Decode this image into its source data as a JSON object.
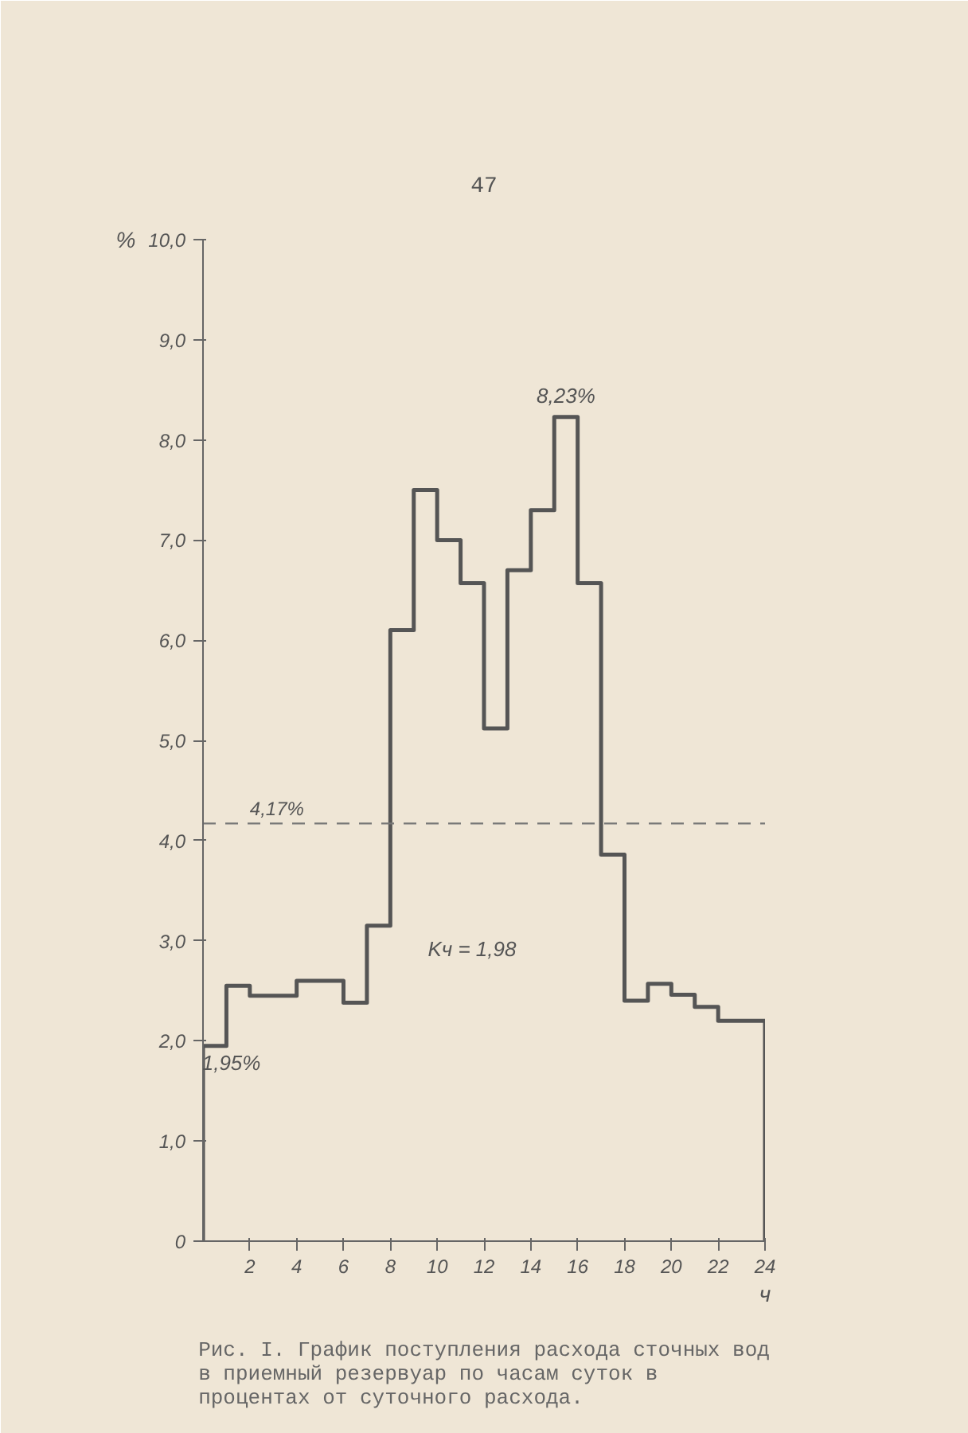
{
  "chart_data": {
    "type": "histogram",
    "title": "Рис. I. График поступления расхода сточных вод в приемный резервуар по часам суток в процентах от суточного расхода.",
    "subtitle": "47",
    "xlabel": "ч",
    "ylabel": "%",
    "bins": [
      0,
      1,
      2,
      3,
      4,
      5,
      6,
      7,
      8,
      9,
      10,
      11,
      12,
      13,
      14,
      15,
      16,
      17,
      18,
      19,
      20,
      21,
      22,
      23,
      24
    ],
    "values": [
      1.95,
      2.55,
      2.45,
      2.45,
      2.6,
      2.6,
      2.38,
      3.15,
      6.1,
      7.5,
      7.0,
      6.57,
      5.12,
      6.7,
      7.3,
      8.23,
      6.57,
      3.86,
      2.4,
      2.57,
      2.46,
      2.34,
      2.2,
      2.2
    ],
    "color": "#555555",
    "xlim": [
      0,
      24
    ],
    "ylim": [
      0,
      10
    ],
    "xticks": [
      2,
      4,
      6,
      8,
      10,
      12,
      14,
      16,
      18,
      20,
      22,
      24
    ],
    "yticks": [
      0,
      {
        "value": 1,
        "label": "1,0"
      },
      {
        "value": 2,
        "label": "2,0"
      },
      {
        "value": 3,
        "label": "3,0"
      },
      {
        "value": 4,
        "label": "4,0"
      },
      {
        "value": 5,
        "label": "5,0"
      },
      {
        "value": 6,
        "label": "6,0"
      },
      {
        "value": 7,
        "label": "7,0"
      },
      {
        "value": 8,
        "label": "8,0"
      },
      {
        "value": 9,
        "label": "9,0"
      },
      {
        "value": 10,
        "label": "10,0"
      }
    ],
    "ref_lines": [
      {
        "axis": "y",
        "value": 4.17,
        "label": "4,17%",
        "line_style": "dashed",
        "color": "#777777"
      }
    ],
    "annotations": [
      {
        "text": "1,95%",
        "x": 0.5,
        "y": 1.95
      },
      {
        "text": "8,23%",
        "x": 15.5,
        "y": 8.23
      },
      "Kч = 1,98"
    ],
    "grid": false
  }
}
